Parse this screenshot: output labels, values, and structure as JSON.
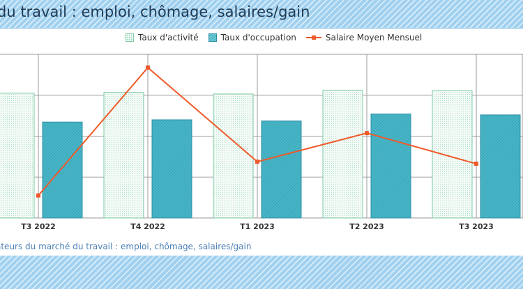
{
  "header": {
    "title": "du travail : emploi, chômage, salaires/gain"
  },
  "footer": {
    "source": "ateurs du marché du travail : emploi, chômage, salaires/gain"
  },
  "colors": {
    "activite_fill": "#f3faf6",
    "activite_stroke": "#7ec8a4",
    "activite_dots": "#9ed9bb",
    "occupation_fill": "#48b6c6",
    "occupation_stroke": "#2d8fa6",
    "salaire_line": "#ee5a2a",
    "grid": "#9a9a9a",
    "band": "#9fd0ef"
  },
  "chart_data": {
    "type": "bar",
    "categories": [
      "T3 2022",
      "T4 2022",
      "T1 2023",
      "T2 2023",
      "T3 2023"
    ],
    "series": [
      {
        "name": "Taux d'activité",
        "type": "bar",
        "axis": "left",
        "values": [
          61.0,
          61.4,
          60.6,
          62.5,
          62.3
        ]
      },
      {
        "name": "Taux d'occupation",
        "type": "bar",
        "axis": "left",
        "values": [
          46.9,
          48.0,
          47.4,
          50.8,
          50.4
        ]
      },
      {
        "name": "Salaire Moyen Mensuel",
        "type": "line",
        "axis": "right",
        "values": [
          11.0,
          73.5,
          27.5,
          41.5,
          26.5
        ]
      }
    ],
    "axis_left_range": [
      0,
      80
    ],
    "axis_right_range": [
      0,
      80
    ],
    "grid": true,
    "legend_position": "top-center"
  }
}
